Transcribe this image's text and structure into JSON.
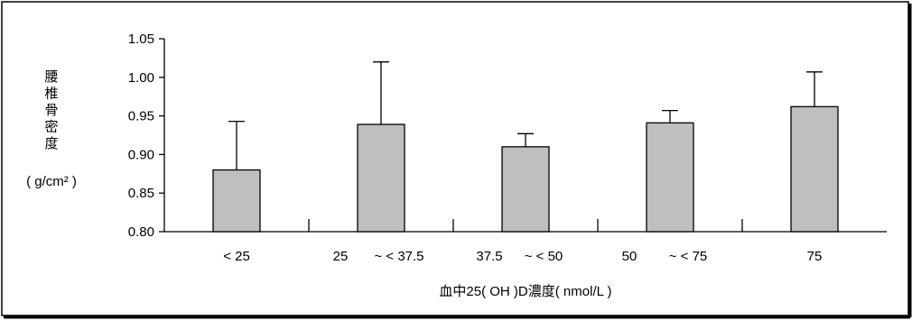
{
  "chart_data": {
    "type": "bar",
    "categories": [
      "< 25",
      "25 ~ < 37.5",
      "37.5 ~ < 50",
      "50 ~ < 75",
      "75"
    ],
    "category_label_parts": [
      [
        "< 25"
      ],
      [
        "25",
        "~ < 37.5"
      ],
      [
        "37.5",
        "~ < 50"
      ],
      [
        "50",
        "~ < 75"
      ],
      [
        "75"
      ]
    ],
    "values": [
      0.88,
      0.939,
      0.91,
      0.941,
      0.962
    ],
    "error_upper": [
      0.943,
      1.02,
      0.927,
      0.957,
      1.007
    ],
    "xlabel": "血中25( OH )D濃度( nmol/L )",
    "ylabel_chars": [
      "腰",
      "椎",
      "骨",
      "密",
      "度"
    ],
    "ylabel_unit": "( g/cm² )",
    "ylim": [
      0.8,
      1.05
    ],
    "yticks": [
      "0.80",
      "0.85",
      "0.90",
      "0.95",
      "1.00",
      "1.05"
    ],
    "grid": false,
    "bar_color": "#bfbfbf",
    "frame_color": "#000000"
  }
}
